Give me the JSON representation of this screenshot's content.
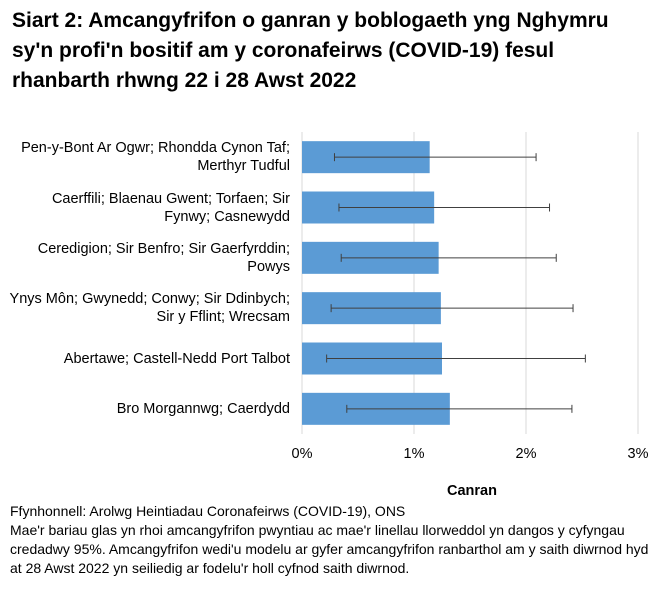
{
  "chart_data": {
    "type": "bar",
    "orientation": "horizontal",
    "title": "Siart 2: Amcangyfrifon o ganran y boblogaeth yng Nghymru sy'n profi'n bositif am y coronafeirws (COVID-19) fesul rhanbarth rhwng 22 i 28 Awst 2022",
    "categories": [
      "Pen-y-Bont Ar Ogwr; Rhondda Cynon Taf; Merthyr Tudful",
      "Caerffili; Blaenau Gwent; Torfaen; Sir Fynwy; Casnewydd",
      "Ceredigion; Sir Benfro; Sir Gaerfyrddin; Powys",
      "Ynys Môn; Gwynedd; Conwy; Sir Ddinbych; Sir y Fflint; Wrecsam",
      "Abertawe; Castell-Nedd Port Talbot",
      "Bro Morgannwg; Caerdydd"
    ],
    "series": [
      {
        "color": "#5b9bd5",
        "values": [
          1.14,
          1.18,
          1.22,
          1.24,
          1.25,
          1.32
        ],
        "lower": [
          0.29,
          0.33,
          0.35,
          0.26,
          0.22,
          0.4
        ],
        "upper": [
          2.09,
          2.21,
          2.27,
          2.42,
          2.53,
          2.41
        ]
      }
    ],
    "xlim": [
      0,
      3
    ],
    "xticks": [
      {
        "value": 0,
        "label": "0%"
      },
      {
        "value": 1,
        "label": "1%"
      },
      {
        "value": 2,
        "label": "2%"
      },
      {
        "value": 3,
        "label": "3%"
      }
    ],
    "xlabel": "Canran",
    "grid": true,
    "source": "Ffynhonnell: Arolwg Heintiadau Coronafeirws (COVID-19), ONS",
    "note": "Mae'r bariau glas yn rhoi amcangyfrifon pwyntiau ac mae'r linellau llorweddol yn dangos y cyfyngau credadwy 95%. Amcangyfrifon wedi'u modelu ar gyfer amcangyfrifon ranbarthol am y saith diwrnod hyd at 28 Awst 2022 yn seiliedig ar fodelu'r holl cyfnod saith diwrnod."
  }
}
